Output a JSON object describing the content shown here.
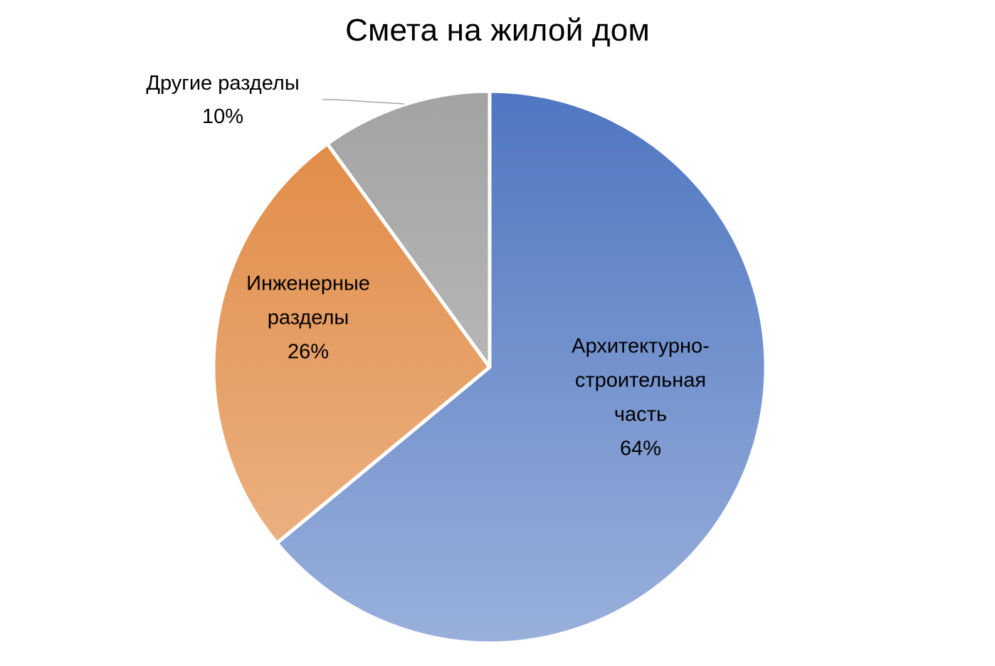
{
  "chart_data": {
    "type": "pie",
    "title": "Смета на жилой дом",
    "slices": [
      {
        "label_lines": [
          "Архитектурно-",
          "строительная",
          "часть"
        ],
        "percent_label": "64%",
        "value": 64,
        "color_top": "#4f76c1",
        "color_bottom": "#99b0db"
      },
      {
        "label_lines": [
          "Инженерные",
          "разделы"
        ],
        "percent_label": "26%",
        "value": 26,
        "color_top": "#e08842",
        "color_bottom": "#edb98e"
      },
      {
        "label_lines": [
          "Другие разделы"
        ],
        "percent_label": "10%",
        "value": 10,
        "color_top": "#a3a3a3",
        "color_bottom": "#c9c9c9"
      }
    ],
    "legend": "none"
  }
}
